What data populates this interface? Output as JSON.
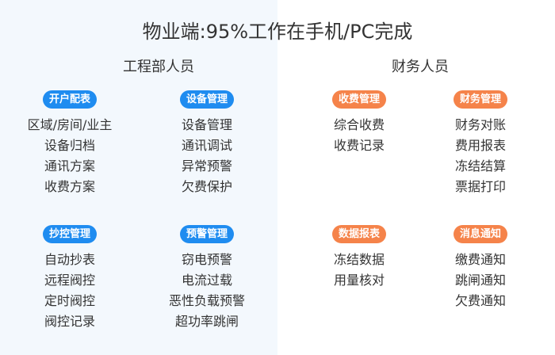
{
  "title": "物业端:95%工作在手机/PC完成",
  "colors": {
    "blue": "#1f8cf0",
    "orange": "#f5834a",
    "left_bg": "#f3f8fd"
  },
  "sections": [
    {
      "header": "工程部人员",
      "groups": [
        {
          "badge": "开户配表",
          "items": [
            "区域/房间/业主",
            "设备归档",
            "通讯方案",
            "收费方案"
          ]
        },
        {
          "badge": "设备管理",
          "items": [
            "设备管理",
            "通讯调试",
            "异常预警",
            "欠费保护"
          ]
        },
        {
          "badge": "抄控管理",
          "items": [
            "自动抄表",
            "远程阀控",
            "定时阀控",
            "阀控记录"
          ]
        },
        {
          "badge": "预警管理",
          "items": [
            "窃电预警",
            "电流过载",
            "恶性负载预警",
            "超功率跳闸"
          ]
        }
      ]
    },
    {
      "header": "财务人员",
      "groups": [
        {
          "badge": "收费管理",
          "items": [
            "综合收费",
            "收费记录"
          ]
        },
        {
          "badge": "财务管理",
          "items": [
            "财务对账",
            "费用报表",
            "冻结结算",
            "票据打印"
          ]
        },
        {
          "badge": "数据报表",
          "items": [
            "冻结数据",
            "用量核对"
          ]
        },
        {
          "badge": "消息通知",
          "items": [
            "缴费通知",
            "跳闸通知",
            "欠费通知"
          ]
        }
      ]
    }
  ]
}
